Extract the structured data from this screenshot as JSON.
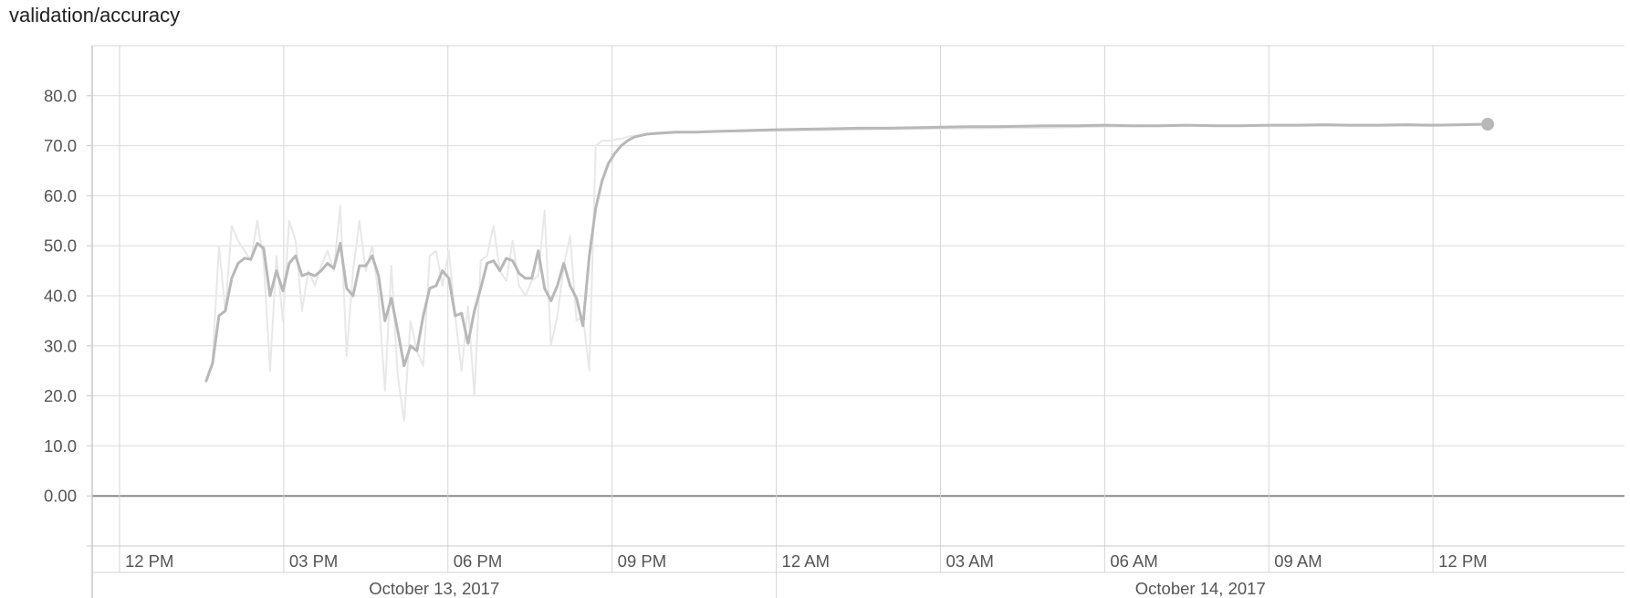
{
  "chart_data": {
    "type": "line",
    "title": "validation/accuracy",
    "ylim": [
      -10,
      90
    ],
    "yticks": [
      "0.00",
      "10.0",
      "20.0",
      "30.0",
      "40.0",
      "50.0",
      "60.0",
      "70.0",
      "80.0"
    ],
    "xlim": [
      "2017-10-13T11:30",
      "2017-10-14T15:30"
    ],
    "xticks": [
      {
        "t": "2017-10-13T12:00",
        "label": "12 PM"
      },
      {
        "t": "2017-10-13T15:00",
        "label": "03 PM"
      },
      {
        "t": "2017-10-13T18:00",
        "label": "06 PM"
      },
      {
        "t": "2017-10-13T21:00",
        "label": "09 PM"
      },
      {
        "t": "2017-10-14T00:00",
        "label": "12 AM"
      },
      {
        "t": "2017-10-14T03:00",
        "label": "03 AM"
      },
      {
        "t": "2017-10-14T06:00",
        "label": "06 AM"
      },
      {
        "t": "2017-10-14T09:00",
        "label": "09 AM"
      },
      {
        "t": "2017-10-14T12:00",
        "label": "12 PM"
      }
    ],
    "date_labels": [
      {
        "label": "October 13, 2017"
      },
      {
        "label": "October 14, 2017"
      }
    ],
    "grid": true,
    "series": [
      {
        "style": "raw",
        "color": "#e8e8e8",
        "x": [
          "2017-10-13T13:35",
          "2017-10-13T13:42",
          "2017-10-13T13:49",
          "2017-10-13T13:56",
          "2017-10-13T14:03",
          "2017-10-13T14:10",
          "2017-10-13T14:17",
          "2017-10-13T14:24",
          "2017-10-13T14:31",
          "2017-10-13T14:38",
          "2017-10-13T14:45",
          "2017-10-13T14:52",
          "2017-10-13T14:59",
          "2017-10-13T15:06",
          "2017-10-13T15:13",
          "2017-10-13T15:20",
          "2017-10-13T15:27",
          "2017-10-13T15:34",
          "2017-10-13T15:41",
          "2017-10-13T15:48",
          "2017-10-13T15:55",
          "2017-10-13T16:02",
          "2017-10-13T16:09",
          "2017-10-13T16:16",
          "2017-10-13T16:23",
          "2017-10-13T16:30",
          "2017-10-13T16:37",
          "2017-10-13T16:44",
          "2017-10-13T16:51",
          "2017-10-13T16:58",
          "2017-10-13T17:05",
          "2017-10-13T17:12",
          "2017-10-13T17:19",
          "2017-10-13T17:26",
          "2017-10-13T17:33",
          "2017-10-13T17:40",
          "2017-10-13T17:47",
          "2017-10-13T17:54",
          "2017-10-13T18:01",
          "2017-10-13T18:08",
          "2017-10-13T18:15",
          "2017-10-13T18:22",
          "2017-10-13T18:29",
          "2017-10-13T18:36",
          "2017-10-13T18:43",
          "2017-10-13T18:50",
          "2017-10-13T18:57",
          "2017-10-13T19:04",
          "2017-10-13T19:11",
          "2017-10-13T19:18",
          "2017-10-13T19:25",
          "2017-10-13T19:32",
          "2017-10-13T19:39",
          "2017-10-13T19:46",
          "2017-10-13T19:53",
          "2017-10-13T20:00",
          "2017-10-13T20:07",
          "2017-10-13T20:14",
          "2017-10-13T20:21",
          "2017-10-13T20:28",
          "2017-10-13T20:35",
          "2017-10-13T20:42",
          "2017-10-13T20:49",
          "2017-10-13T20:56",
          "2017-10-13T21:03",
          "2017-10-13T21:10",
          "2017-10-13T21:17",
          "2017-10-13T21:24",
          "2017-10-13T21:35",
          "2017-10-13T21:50",
          "2017-10-13T22:10",
          "2017-10-13T22:40",
          "2017-10-13T23:20",
          "2017-10-14T00:00",
          "2017-10-14T01:00",
          "2017-10-14T02:00",
          "2017-10-14T03:00",
          "2017-10-14T04:00",
          "2017-10-14T05:00",
          "2017-10-14T06:00",
          "2017-10-14T07:00",
          "2017-10-14T08:00",
          "2017-10-14T09:00",
          "2017-10-14T10:00",
          "2017-10-14T11:00",
          "2017-10-14T12:00",
          "2017-10-14T13:00"
        ],
        "y": [
          23,
          27,
          50,
          37,
          54,
          51,
          49,
          47,
          55,
          47,
          25,
          48,
          35,
          55,
          51,
          37,
          45,
          42,
          46,
          49,
          45,
          58,
          28,
          45,
          55,
          45,
          50,
          40,
          21,
          46,
          24,
          15,
          35,
          29,
          26,
          48,
          49,
          42,
          49,
          36,
          25,
          38,
          20,
          47,
          48,
          54,
          45,
          43,
          51,
          42,
          40,
          43,
          44,
          57,
          30,
          36,
          46,
          52,
          35,
          36,
          25,
          70,
          71,
          71,
          71.2,
          71.4,
          71.8,
          72,
          72.2,
          72.4,
          72.6,
          72.8,
          72.9,
          73,
          73.1,
          73.3,
          73.4,
          73.5,
          73.6,
          73.8,
          73.9,
          74,
          74,
          74,
          74,
          74,
          74.2
        ]
      },
      {
        "style": "smoothed",
        "color": "#b8b8b8",
        "x": [
          "2017-10-13T13:35",
          "2017-10-13T13:42",
          "2017-10-13T13:49",
          "2017-10-13T13:56",
          "2017-10-13T14:03",
          "2017-10-13T14:10",
          "2017-10-13T14:17",
          "2017-10-13T14:24",
          "2017-10-13T14:31",
          "2017-10-13T14:38",
          "2017-10-13T14:45",
          "2017-10-13T14:52",
          "2017-10-13T14:59",
          "2017-10-13T15:06",
          "2017-10-13T15:13",
          "2017-10-13T15:20",
          "2017-10-13T15:27",
          "2017-10-13T15:34",
          "2017-10-13T15:41",
          "2017-10-13T15:48",
          "2017-10-13T15:55",
          "2017-10-13T16:02",
          "2017-10-13T16:09",
          "2017-10-13T16:16",
          "2017-10-13T16:23",
          "2017-10-13T16:30",
          "2017-10-13T16:37",
          "2017-10-13T16:44",
          "2017-10-13T16:51",
          "2017-10-13T16:58",
          "2017-10-13T17:05",
          "2017-10-13T17:12",
          "2017-10-13T17:19",
          "2017-10-13T17:26",
          "2017-10-13T17:33",
          "2017-10-13T17:40",
          "2017-10-13T17:47",
          "2017-10-13T17:54",
          "2017-10-13T18:01",
          "2017-10-13T18:08",
          "2017-10-13T18:15",
          "2017-10-13T18:22",
          "2017-10-13T18:29",
          "2017-10-13T18:36",
          "2017-10-13T18:43",
          "2017-10-13T18:50",
          "2017-10-13T18:57",
          "2017-10-13T19:04",
          "2017-10-13T19:11",
          "2017-10-13T19:18",
          "2017-10-13T19:25",
          "2017-10-13T19:32",
          "2017-10-13T19:39",
          "2017-10-13T19:46",
          "2017-10-13T19:53",
          "2017-10-13T20:00",
          "2017-10-13T20:07",
          "2017-10-13T20:14",
          "2017-10-13T20:21",
          "2017-10-13T20:28",
          "2017-10-13T20:35",
          "2017-10-13T20:42",
          "2017-10-13T20:49",
          "2017-10-13T20:56",
          "2017-10-13T21:03",
          "2017-10-13T21:10",
          "2017-10-13T21:17",
          "2017-10-13T21:24",
          "2017-10-13T21:31",
          "2017-10-13T21:38",
          "2017-10-13T21:45",
          "2017-10-13T21:52",
          "2017-10-13T22:00",
          "2017-10-13T22:10",
          "2017-10-13T22:20",
          "2017-10-13T22:30",
          "2017-10-13T22:45",
          "2017-10-13T23:00",
          "2017-10-13T23:20",
          "2017-10-13T23:40",
          "2017-10-14T00:00",
          "2017-10-14T00:30",
          "2017-10-14T01:00",
          "2017-10-14T01:30",
          "2017-10-14T02:00",
          "2017-10-14T02:30",
          "2017-10-14T03:00",
          "2017-10-14T03:30",
          "2017-10-14T04:00",
          "2017-10-14T04:30",
          "2017-10-14T05:00",
          "2017-10-14T05:30",
          "2017-10-14T06:00",
          "2017-10-14T06:30",
          "2017-10-14T07:00",
          "2017-10-14T07:30",
          "2017-10-14T08:00",
          "2017-10-14T08:30",
          "2017-10-14T09:00",
          "2017-10-14T09:30",
          "2017-10-14T10:00",
          "2017-10-14T10:30",
          "2017-10-14T11:00",
          "2017-10-14T11:30",
          "2017-10-14T12:00",
          "2017-10-14T12:30",
          "2017-10-14T13:00"
        ],
        "y": [
          23,
          26.5,
          36,
          37,
          43.5,
          46.5,
          47.5,
          47.3,
          50.5,
          49.5,
          40,
          45,
          41,
          46.5,
          48,
          44,
          44.5,
          44,
          45,
          46.5,
          45.5,
          50.5,
          41.5,
          40,
          46,
          46,
          48,
          44,
          35,
          39.5,
          33,
          26,
          30,
          29,
          36,
          41.5,
          42,
          45,
          43.5,
          36,
          36.5,
          30.5,
          37,
          41.5,
          46.5,
          47,
          45,
          47.5,
          47,
          44.5,
          43.5,
          43.5,
          49,
          41.5,
          39,
          42,
          46.5,
          42,
          39.5,
          34,
          48,
          57.5,
          63,
          66.5,
          68.5,
          70,
          71,
          71.7,
          72,
          72.3,
          72.4,
          72.5,
          72.6,
          72.7,
          72.7,
          72.7,
          72.8,
          72.9,
          73,
          73.1,
          73.2,
          73.3,
          73.4,
          73.5,
          73.5,
          73.6,
          73.7,
          73.8,
          73.8,
          73.9,
          74,
          74,
          74.1,
          74,
          74,
          74.1,
          74,
          74,
          74.1,
          74.1,
          74.2,
          74.1,
          74.1,
          74.2,
          74.1,
          74.2,
          74.3
        ]
      }
    ]
  }
}
